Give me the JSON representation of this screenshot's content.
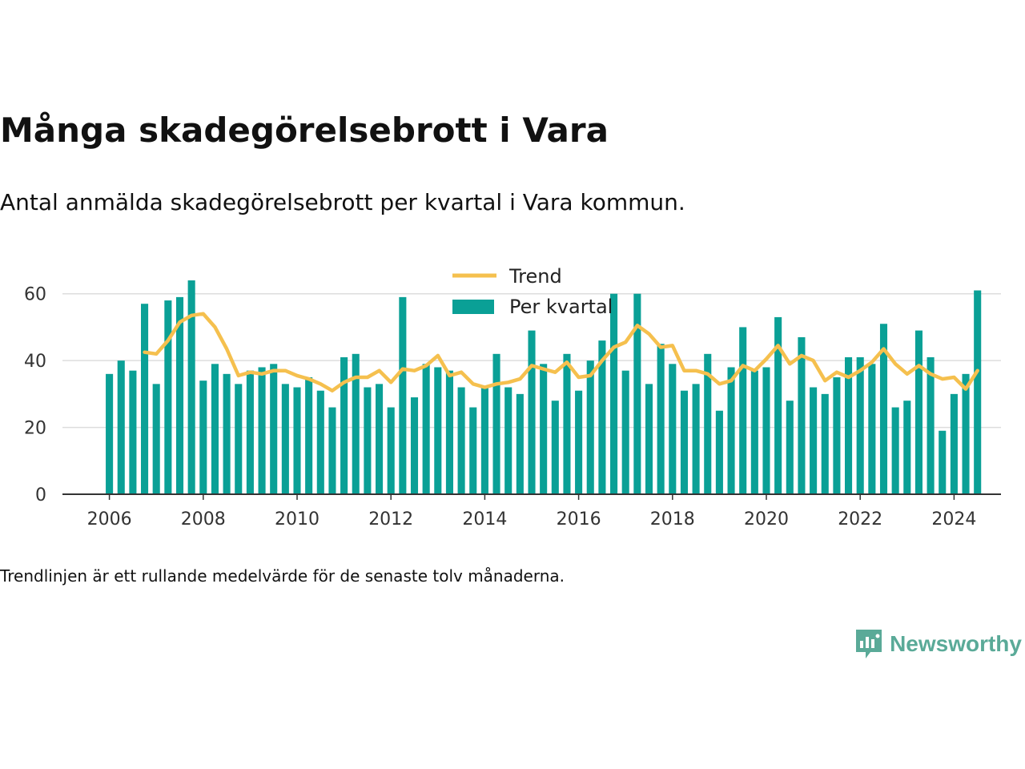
{
  "title": "Många skadegörelsebrott i Vara",
  "subtitle": "Antal anmälda skadegörelsebrott per kvartal i Vara kommun.",
  "note": "Trendlinjen är ett rullande medelvärde för de senaste tolv månaderna.",
  "brand": {
    "name": "Newsworthy",
    "icon": "newsworthy-logo-icon",
    "color": "#5aaa98"
  },
  "colors": {
    "bar": "#0aa096",
    "trend": "#f5c04e",
    "grid": "#dddddd",
    "axis": "#333333"
  },
  "chart_data": {
    "type": "bar",
    "x_start_year": 2006,
    "x_start_quarter": 1,
    "xticks": [
      2006,
      2008,
      2010,
      2012,
      2014,
      2016,
      2018,
      2020,
      2022,
      2024
    ],
    "xlim": [
      2005,
      2025
    ],
    "yticks": [
      0,
      20,
      40,
      60
    ],
    "ylim": [
      0,
      70
    ],
    "grid": true,
    "legend_position": "top-center",
    "legend": [
      "Trend",
      "Per kvartal"
    ],
    "series": [
      {
        "name": "Per kvartal",
        "type": "bar",
        "values": [
          36,
          40,
          37,
          57,
          33,
          58,
          59,
          64,
          34,
          39,
          36,
          33,
          37,
          38,
          39,
          33,
          32,
          35,
          31,
          26,
          41,
          42,
          32,
          33,
          26,
          59,
          29,
          39,
          38,
          37,
          32,
          26,
          32,
          42,
          32,
          30,
          49,
          39,
          28,
          42,
          31,
          40,
          46,
          60,
          37,
          60,
          33,
          45,
          39,
          31,
          33,
          42,
          25,
          38,
          50,
          37,
          38,
          53,
          28,
          47,
          32,
          30,
          35,
          41,
          41,
          39,
          51,
          26,
          28,
          49,
          41,
          19,
          30,
          36,
          61
        ]
      },
      {
        "name": "Trend",
        "type": "line",
        "start_index": 3,
        "values": [
          42.5,
          42,
          46,
          51.5,
          53.5,
          54,
          50,
          43.5,
          35.5,
          36.5,
          36,
          37,
          37,
          35.5,
          34.5,
          33,
          31,
          33.5,
          35,
          35,
          37,
          33.5,
          37.5,
          37,
          38.5,
          41.5,
          35.5,
          36.5,
          33,
          32,
          33,
          33.5,
          34.5,
          38.5,
          37.5,
          36.5,
          39.5,
          35,
          35.5,
          40,
          44,
          45.5,
          50.5,
          48,
          44,
          44.5,
          37,
          37,
          36,
          33,
          34,
          38.5,
          37,
          40.5,
          44.5,
          39,
          41.5,
          40,
          34,
          36.5,
          35,
          37,
          39.5,
          43.5,
          39,
          36,
          38.5,
          36,
          34.5,
          35,
          31.5,
          37
        ]
      }
    ]
  }
}
